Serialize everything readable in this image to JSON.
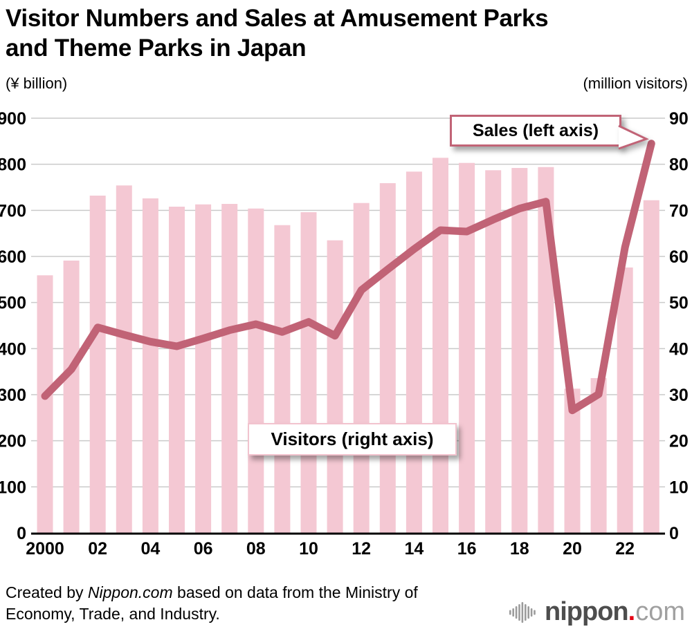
{
  "header": {
    "title_line1": "Visitor Numbers and Sales at Amusement Parks",
    "title_line2": "and Theme Parks in Japan"
  },
  "axis_units": {
    "left": "(¥ billion)",
    "right": "(million visitors)"
  },
  "annotations": {
    "sales_label": "Sales (left axis)",
    "visitors_label": "Visitors (right axis)"
  },
  "footer": {
    "credit_prefix": "Created by ",
    "credit_source": "Nippon.com",
    "credit_suffix_line1": " based on data from the Ministry of",
    "credit_line2": "Economy, Trade, and Industry.",
    "logo_icon": "soundwave-bars-icon",
    "logo_text_main": "nippon",
    "logo_dot": ".",
    "logo_text_suffix": "com"
  },
  "chart_data": {
    "type": "bar+line",
    "title": "Visitor Numbers and Sales at Amusement Parks and Theme Parks in Japan",
    "years": [
      2000,
      2001,
      2002,
      2003,
      2004,
      2005,
      2006,
      2007,
      2008,
      2009,
      2010,
      2011,
      2012,
      2013,
      2014,
      2015,
      2016,
      2017,
      2018,
      2019,
      2020,
      2021,
      2022,
      2023
    ],
    "x_tick_labels": [
      "2000",
      "02",
      "04",
      "06",
      "08",
      "10",
      "12",
      "14",
      "16",
      "18",
      "20",
      "22"
    ],
    "x_tick_positions": [
      0,
      2,
      4,
      6,
      8,
      10,
      12,
      14,
      16,
      18,
      20,
      22
    ],
    "series": [
      {
        "name": "Sales (left axis)",
        "type": "line",
        "axis": "left",
        "unit": "¥ billion",
        "values": [
          297,
          355,
          446,
          430,
          415,
          405,
          422,
          440,
          453,
          436,
          458,
          428,
          527,
          572,
          616,
          657,
          654,
          680,
          704,
          719,
          266,
          301,
          620,
          845
        ]
      },
      {
        "name": "Visitors (right axis)",
        "type": "bar",
        "axis": "right",
        "unit": "million visitors",
        "values": [
          55.9,
          59.1,
          73.2,
          75.4,
          72.6,
          70.8,
          71.3,
          71.4,
          70.4,
          66.8,
          69.6,
          63.5,
          71.6,
          75.9,
          78.4,
          81.4,
          80.3,
          78.7,
          79.2,
          79.4,
          31.3,
          33.6,
          57.6,
          72.2
        ]
      }
    ],
    "left_axis": {
      "label": "(¥ billion)",
      "min": 0,
      "max": 900,
      "tick_step": 100
    },
    "right_axis": {
      "label": "(million visitors)",
      "min": 0,
      "max": 90,
      "tick_step": 10
    },
    "grid": true,
    "legend_position": "annotation-callouts",
    "colors": {
      "bar": "#f4c8d3",
      "line": "#c16376",
      "gridline": "#cacaca",
      "axis": "#000000",
      "sales_box_border": "#c16376",
      "visitors_box_border": "#f2c3ce",
      "logo_red": "#e60012",
      "logo_gray_dark": "#4d4d4d",
      "logo_gray_light": "#a0a0a0"
    }
  }
}
